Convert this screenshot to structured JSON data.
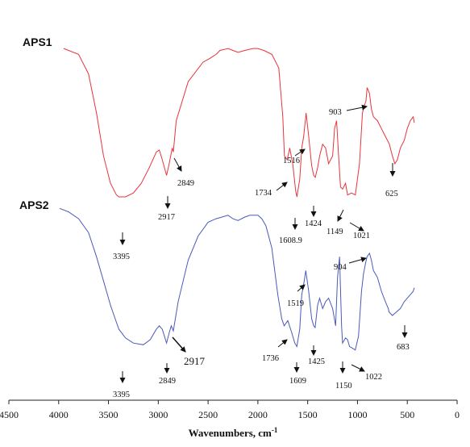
{
  "chart_data": {
    "type": "line",
    "title": "",
    "xlabel": "Wavenumbers, cm",
    "xlabel_superscript": "-1",
    "ylabel": "",
    "xlim": [
      4500,
      0
    ],
    "x_reversed": true,
    "x_ticks": [
      4500,
      4000,
      3500,
      3000,
      2500,
      2000,
      1500,
      1000,
      500,
      0
    ],
    "grid": false,
    "legend": "none",
    "series": [
      {
        "name": "APS1",
        "color": "#e8343c",
        "x": [
          3950,
          3800,
          3700,
          3620,
          3550,
          3480,
          3420,
          3395,
          3330,
          3250,
          3170,
          3090,
          3020,
          2990,
          2960,
          2917,
          2890,
          2860,
          2849,
          2820,
          2700,
          2550,
          2480,
          2420,
          2380,
          2300,
          2250,
          2200,
          2130,
          2050,
          2000,
          1940,
          1860,
          1790,
          1750,
          1734,
          1705,
          1680,
          1650,
          1620,
          1608,
          1580,
          1560,
          1540,
          1516,
          1490,
          1460,
          1440,
          1424,
          1400,
          1380,
          1350,
          1320,
          1290,
          1250,
          1230,
          1210,
          1190,
          1170,
          1149,
          1120,
          1100,
          1060,
          1021,
          980,
          950,
          930,
          915,
          903,
          880,
          860,
          840,
          800,
          760,
          720,
          680,
          650,
          625,
          600,
          570,
          530,
          500,
          470,
          440,
          430
        ],
        "y": [
          95,
          92,
          82,
          62,
          40,
          26,
          20,
          19,
          19,
          21,
          26,
          34,
          42,
          43,
          38,
          30,
          36,
          44,
          42,
          58,
          78,
          88,
          90,
          92,
          94,
          95,
          94,
          93,
          94,
          95,
          95,
          94,
          92,
          85,
          60,
          40,
          38,
          44,
          36,
          22,
          19,
          28,
          44,
          50,
          62,
          50,
          35,
          30,
          29,
          34,
          40,
          46,
          44,
          36,
          40,
          54,
          58,
          40,
          24,
          23,
          26,
          20,
          21,
          20,
          36,
          62,
          66,
          68,
          75,
          72,
          64,
          60,
          58,
          54,
          50,
          46,
          40,
          36,
          38,
          44,
          48,
          54,
          58,
          60,
          57
        ]
      },
      {
        "name": "APS2",
        "color": "#4a5ab8",
        "x": [
          3990,
          3900,
          3800,
          3700,
          3620,
          3550,
          3480,
          3420,
          3395,
          3330,
          3250,
          3150,
          3080,
          3020,
          2990,
          2960,
          2917,
          2890,
          2870,
          2849,
          2800,
          2700,
          2600,
          2500,
          2420,
          2360,
          2300,
          2250,
          2200,
          2130,
          2080,
          2000,
          1960,
          1920,
          1860,
          1800,
          1760,
          1736,
          1700,
          1660,
          1630,
          1609,
          1580,
          1560,
          1540,
          1519,
          1490,
          1460,
          1440,
          1425,
          1400,
          1380,
          1350,
          1320,
          1290,
          1250,
          1220,
          1200,
          1180,
          1160,
          1150,
          1120,
          1100,
          1080,
          1050,
          1022,
          990,
          960,
          940,
          920,
          904,
          880,
          860,
          840,
          800,
          760,
          720,
          690,
          683,
          650,
          610,
          570,
          530,
          500,
          470,
          440,
          430
        ],
        "y": [
          98,
          96,
          92,
          84,
          70,
          56,
          42,
          32,
          28,
          23,
          20,
          19,
          22,
          28,
          30,
          28,
          20,
          26,
          30,
          27,
          44,
          68,
          82,
          90,
          92,
          93,
          94,
          92,
          91,
          93,
          94,
          94,
          92,
          88,
          75,
          48,
          34,
          30,
          33,
          26,
          20,
          18,
          28,
          48,
          54,
          62,
          50,
          34,
          30,
          29,
          42,
          46,
          40,
          44,
          46,
          40,
          30,
          58,
          70,
          30,
          20,
          23,
          22,
          18,
          17,
          16,
          24,
          50,
          60,
          66,
          70,
          72,
          68,
          62,
          58,
          50,
          44,
          40,
          38,
          36,
          38,
          40,
          44,
          46,
          48,
          50,
          52
        ]
      }
    ],
    "annotations": {
      "aps1": [
        "3395",
        "2917",
        "2849",
        "1734",
        "1516",
        "1608.9",
        "1424",
        "1149",
        "1021",
        "903",
        "625"
      ],
      "aps2": [
        "3395",
        "2849",
        "2917",
        "1736",
        "1519",
        "1609",
        "1425",
        "1150",
        "1022",
        "904",
        "683"
      ]
    }
  }
}
